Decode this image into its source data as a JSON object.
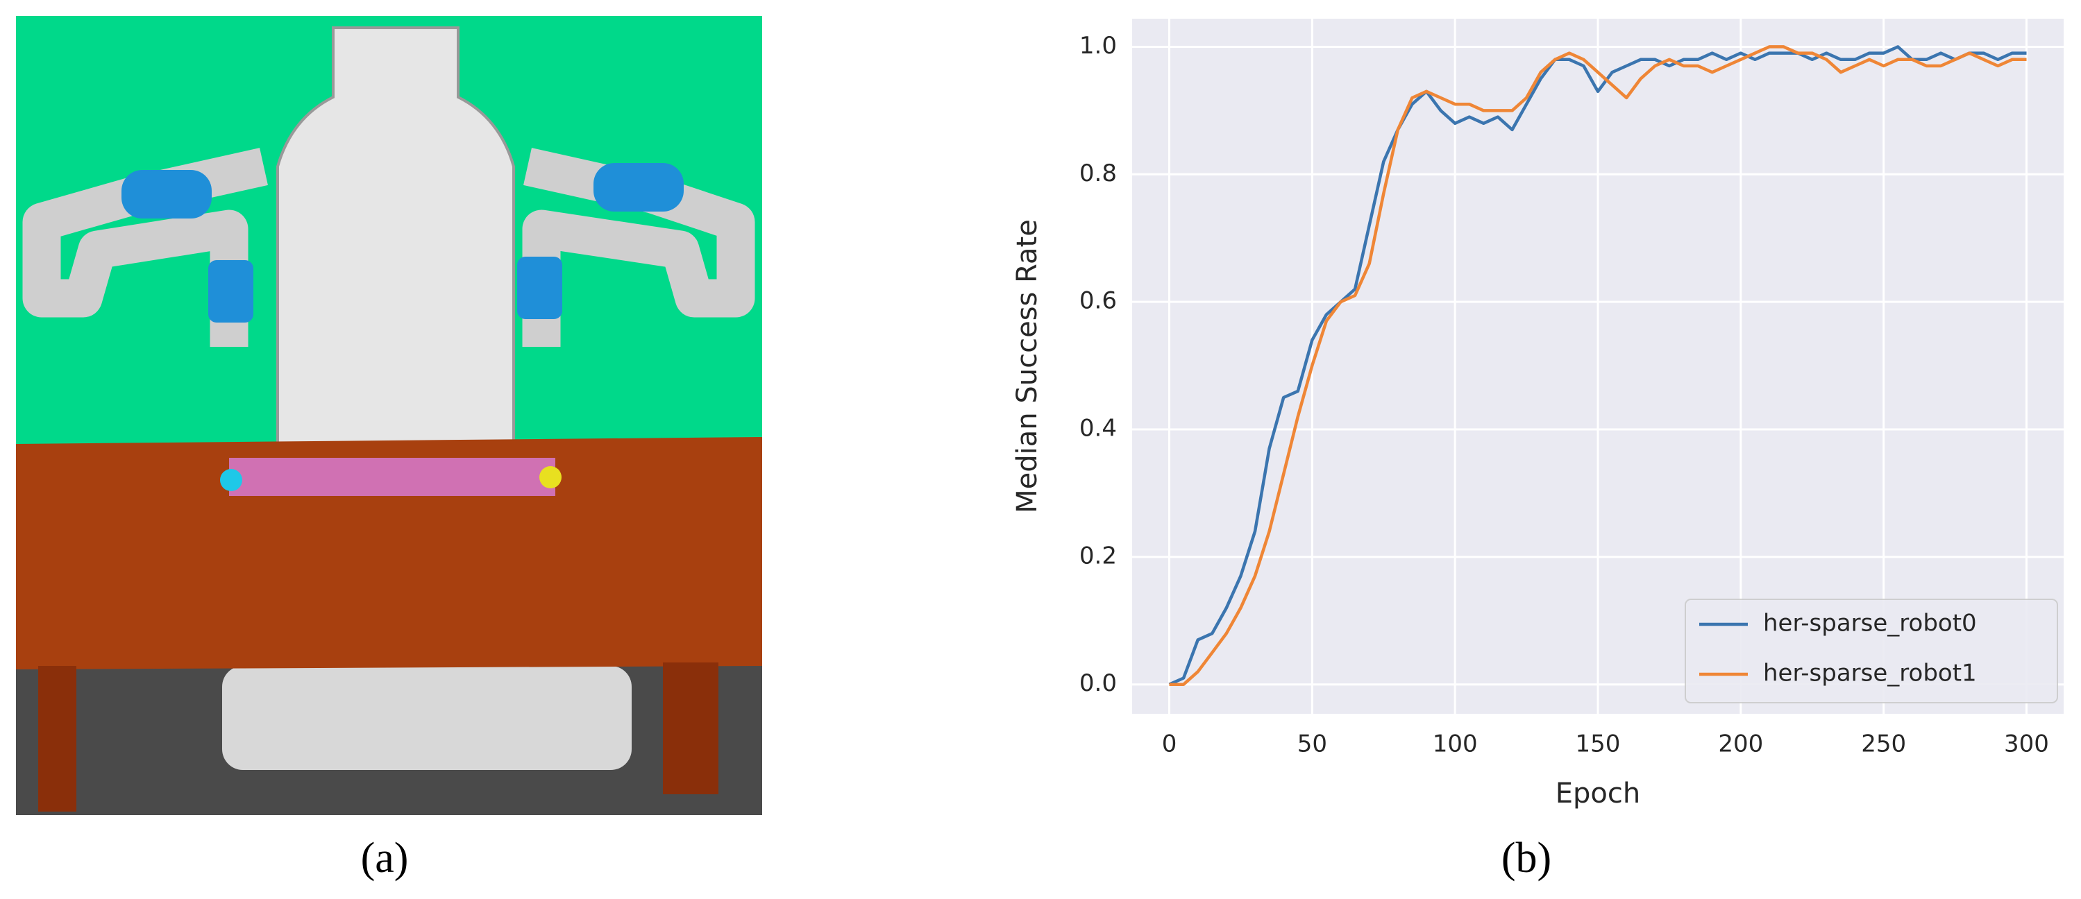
{
  "panels": {
    "a": "(a)",
    "b": "(b)"
  },
  "chart_data": {
    "type": "line",
    "xlabel": "Epoch",
    "ylabel": "Median Success Rate",
    "x": [
      0,
      5,
      10,
      15,
      20,
      25,
      30,
      35,
      40,
      45,
      50,
      55,
      60,
      65,
      70,
      75,
      80,
      85,
      90,
      95,
      100,
      105,
      110,
      115,
      120,
      125,
      130,
      135,
      140,
      145,
      150,
      155,
      160,
      165,
      170,
      175,
      180,
      185,
      190,
      195,
      200,
      205,
      210,
      215,
      220,
      225,
      230,
      235,
      240,
      245,
      250,
      255,
      260,
      265,
      270,
      275,
      280,
      285,
      290,
      295,
      300
    ],
    "series": [
      {
        "name": "her-sparse_robot0",
        "color": "#3b75af",
        "values": [
          0,
          0.01,
          0.07,
          0.08,
          0.12,
          0.17,
          0.24,
          0.37,
          0.45,
          0.46,
          0.54,
          0.58,
          0.6,
          0.62,
          0.72,
          0.82,
          0.87,
          0.91,
          0.93,
          0.9,
          0.88,
          0.89,
          0.88,
          0.89,
          0.87,
          0.91,
          0.95,
          0.98,
          0.98,
          0.97,
          0.93,
          0.96,
          0.97,
          0.98,
          0.98,
          0.97,
          0.98,
          0.98,
          0.99,
          0.98,
          0.99,
          0.98,
          0.99,
          0.99,
          0.99,
          0.98,
          0.99,
          0.98,
          0.98,
          0.99,
          0.99,
          1.0,
          0.98,
          0.98,
          0.99,
          0.98,
          0.99,
          0.99,
          0.98,
          0.99,
          0.99
        ]
      },
      {
        "name": "her-sparse_robot1",
        "color": "#ef8636",
        "values": [
          0,
          0,
          0.02,
          0.05,
          0.08,
          0.12,
          0.17,
          0.24,
          0.33,
          0.42,
          0.5,
          0.57,
          0.6,
          0.61,
          0.66,
          0.77,
          0.87,
          0.92,
          0.93,
          0.92,
          0.91,
          0.91,
          0.9,
          0.9,
          0.9,
          0.92,
          0.96,
          0.98,
          0.99,
          0.98,
          0.96,
          0.94,
          0.92,
          0.95,
          0.97,
          0.98,
          0.97,
          0.97,
          0.96,
          0.97,
          0.98,
          0.99,
          1.0,
          1.0,
          0.99,
          0.99,
          0.98,
          0.96,
          0.97,
          0.98,
          0.97,
          0.98,
          0.98,
          0.97,
          0.97,
          0.98,
          0.99,
          0.98,
          0.97,
          0.98,
          0.98
        ]
      }
    ],
    "xlim": [
      -13,
      313
    ],
    "ylim": [
      -0.046,
      1.044
    ],
    "xticks": [
      0,
      50,
      100,
      150,
      200,
      250,
      300
    ],
    "yticks": [
      {
        "value": 0,
        "label": "0.0"
      },
      {
        "value": 0.2,
        "label": "0.2"
      },
      {
        "value": 0.4,
        "label": "0.4"
      },
      {
        "value": 0.6,
        "label": "0.6"
      },
      {
        "value": 0.8,
        "label": "0.8"
      },
      {
        "value": 1,
        "label": "1.0"
      }
    ],
    "grid": true,
    "legend": "lower right"
  }
}
